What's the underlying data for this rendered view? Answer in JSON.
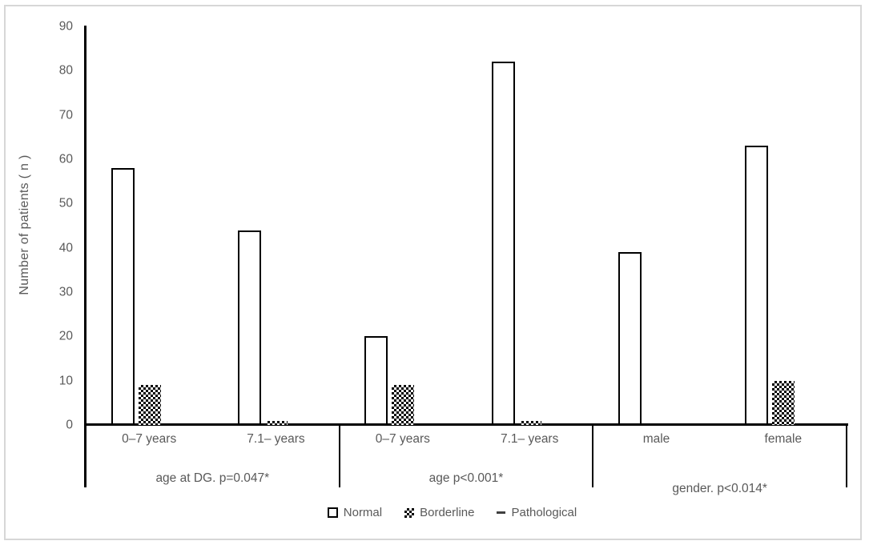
{
  "figure": {
    "background": "#ffffff",
    "border_color": "#d7d7d7"
  },
  "chart_data": {
    "type": "bar",
    "title": "",
    "xlabel": "",
    "ylabel": "Number of patients ( n )",
    "ylim": [
      0,
      90
    ],
    "yticks": [
      0,
      10,
      20,
      30,
      40,
      50,
      60,
      70,
      80,
      90
    ],
    "grid": false,
    "legend_position": "bottom",
    "categories": [
      "0–7 years",
      "7.1– years",
      "0–7 years",
      "7.1– years",
      "male",
      "female"
    ],
    "groups": [
      {
        "label": "age at DG. p=0.047*",
        "start": 0,
        "end": 2
      },
      {
        "label": "age p<0.001*",
        "start": 2,
        "end": 4
      },
      {
        "label": "gender. p<0.014*",
        "start": 4,
        "end": 6
      }
    ],
    "series": [
      {
        "name": "Normal",
        "marker": "white-square",
        "style": "bar-white",
        "values": [
          58,
          44,
          20,
          82,
          39,
          63
        ]
      },
      {
        "name": "Borderline",
        "marker": "checker-square",
        "style": "bar-checker",
        "values": [
          9,
          1,
          9,
          1,
          0,
          10
        ]
      },
      {
        "name": "Pathological",
        "marker": "dash",
        "style": "bar-zero",
        "values": [
          0,
          0,
          0,
          0,
          0,
          0
        ]
      }
    ],
    "colors": {
      "axis": "#000000",
      "text": "#595959",
      "frame_border": "#d7d7d7",
      "bar_fill": "#ffffff",
      "bar_border": "#000000",
      "pattern": "#000000"
    }
  }
}
